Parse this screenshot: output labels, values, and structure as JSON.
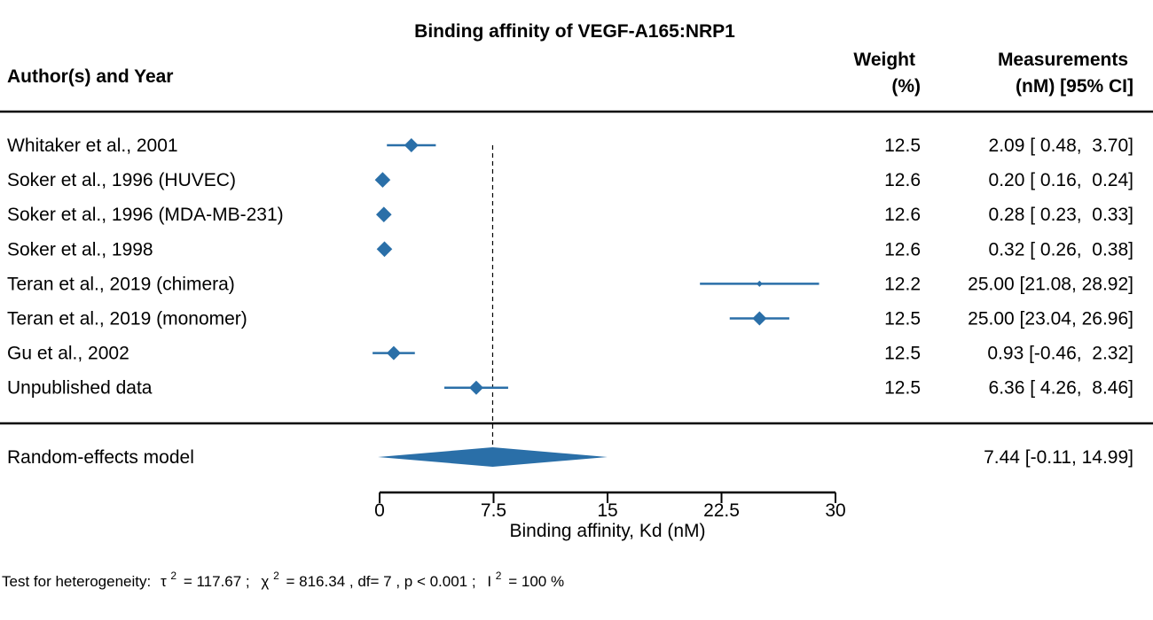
{
  "chart_data": {
    "type": "forest",
    "title": "Binding affinity of VEGF-A165:NRP1",
    "columns": {
      "study": "Author(s) and Year",
      "weight_line1": "Weight",
      "weight_line2": "(%)",
      "measure_line1": "Measurements",
      "measure_line2": "(nM) [95% CI]"
    },
    "studies": [
      {
        "label": "Whitaker et al., 2001",
        "estimate": 2.09,
        "ci_low": 0.48,
        "ci_high": 3.7,
        "weight": "12.5",
        "text": "2.09 [ 0.48,  3.70]"
      },
      {
        "label": "Soker et al., 1996 (HUVEC)",
        "estimate": 0.2,
        "ci_low": 0.16,
        "ci_high": 0.24,
        "weight": "12.6",
        "text": "0.20 [ 0.16,  0.24]"
      },
      {
        "label": "Soker et al., 1996 (MDA-MB-231)",
        "estimate": 0.28,
        "ci_low": 0.23,
        "ci_high": 0.33,
        "weight": "12.6",
        "text": "0.28 [ 0.23,  0.33]"
      },
      {
        "label": "Soker et al., 1998",
        "estimate": 0.32,
        "ci_low": 0.26,
        "ci_high": 0.38,
        "weight": "12.6",
        "text": "0.32 [ 0.26,  0.38]"
      },
      {
        "label": "Teran et al., 2019 (chimera)",
        "estimate": 25.0,
        "ci_low": 21.08,
        "ci_high": 28.92,
        "weight": "12.2",
        "text": "25.00 [21.08, 28.92]"
      },
      {
        "label": "Teran et al., 2019 (monomer)",
        "estimate": 25.0,
        "ci_low": 23.04,
        "ci_high": 26.96,
        "weight": "12.5",
        "text": "25.00 [23.04, 26.96]"
      },
      {
        "label": "Gu et al., 2002",
        "estimate": 0.93,
        "ci_low": -0.46,
        "ci_high": 2.32,
        "weight": "12.5",
        "text": "0.93 [-0.46,  2.32]"
      },
      {
        "label": "Unpublished data",
        "estimate": 6.36,
        "ci_low": 4.26,
        "ci_high": 8.46,
        "weight": "12.5",
        "text": "6.36 [ 4.26,  8.46]"
      }
    ],
    "summary": {
      "label": "Random-effects model",
      "estimate": 7.44,
      "ci_low": -0.11,
      "ci_high": 14.99,
      "text": "7.44 [-0.11, 14.99]"
    },
    "xlabel": "Binding affinity, Kd (nM)",
    "xlim": [
      0,
      30
    ],
    "xticks": [
      0,
      7.5,
      15,
      22.5,
      30
    ],
    "xtick_labels": [
      "0",
      "7.5",
      "15",
      "22.5",
      "30"
    ],
    "reference_line": 7.44,
    "heterogeneity": {
      "prefix": "Test for heterogeneity:",
      "tau_symbol": "τ",
      "tau_value": "= 117.67 ;",
      "chi_symbol": "χ",
      "chi_value": "= 816.34 , df= 7 ,  p < 0.001 ;",
      "i_symbol": "I",
      "i_value": "= 100 %",
      "sup": "2"
    },
    "colors": {
      "marker": "#2a6fa8",
      "text": "#000000"
    }
  }
}
